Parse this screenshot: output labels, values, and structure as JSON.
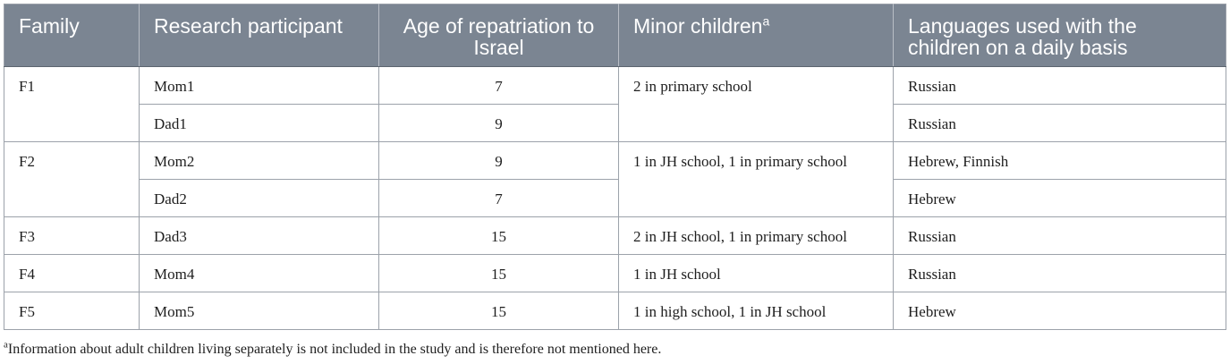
{
  "headers": {
    "family": "Family",
    "participant": "Research participant",
    "age": "Age of repatriation to Israel",
    "children": "Minor children",
    "children_sup": "a",
    "languages": "Languages used with the children on a daily basis"
  },
  "families": [
    {
      "family": "F1",
      "children": "2 in primary school",
      "members": [
        {
          "participant": "Mom1",
          "age": "7",
          "languages": "Russian"
        },
        {
          "participant": "Dad1",
          "age": "9",
          "languages": "Russian"
        }
      ]
    },
    {
      "family": "F2",
      "children": "1 in JH school, 1 in primary school",
      "members": [
        {
          "participant": "Mom2",
          "age": "9",
          "languages": "Hebrew, Finnish"
        },
        {
          "participant": "Dad2",
          "age": "7",
          "languages": "Hebrew"
        }
      ]
    },
    {
      "family": "F3",
      "children": "2 in JH school, 1 in primary school",
      "members": [
        {
          "participant": "Dad3",
          "age": "15",
          "languages": "Russian"
        }
      ]
    },
    {
      "family": "F4",
      "children": "1 in JH school",
      "members": [
        {
          "participant": "Mom4",
          "age": "15",
          "languages": "Russian"
        }
      ]
    },
    {
      "family": "F5",
      "children": "1 in high school, 1 in JH school",
      "members": [
        {
          "participant": "Mom5",
          "age": "15",
          "languages": "Hebrew"
        }
      ]
    }
  ],
  "footnote": {
    "marker": "a",
    "text": "Information about adult children living separately is not included in the study and is therefore not mentioned here."
  }
}
